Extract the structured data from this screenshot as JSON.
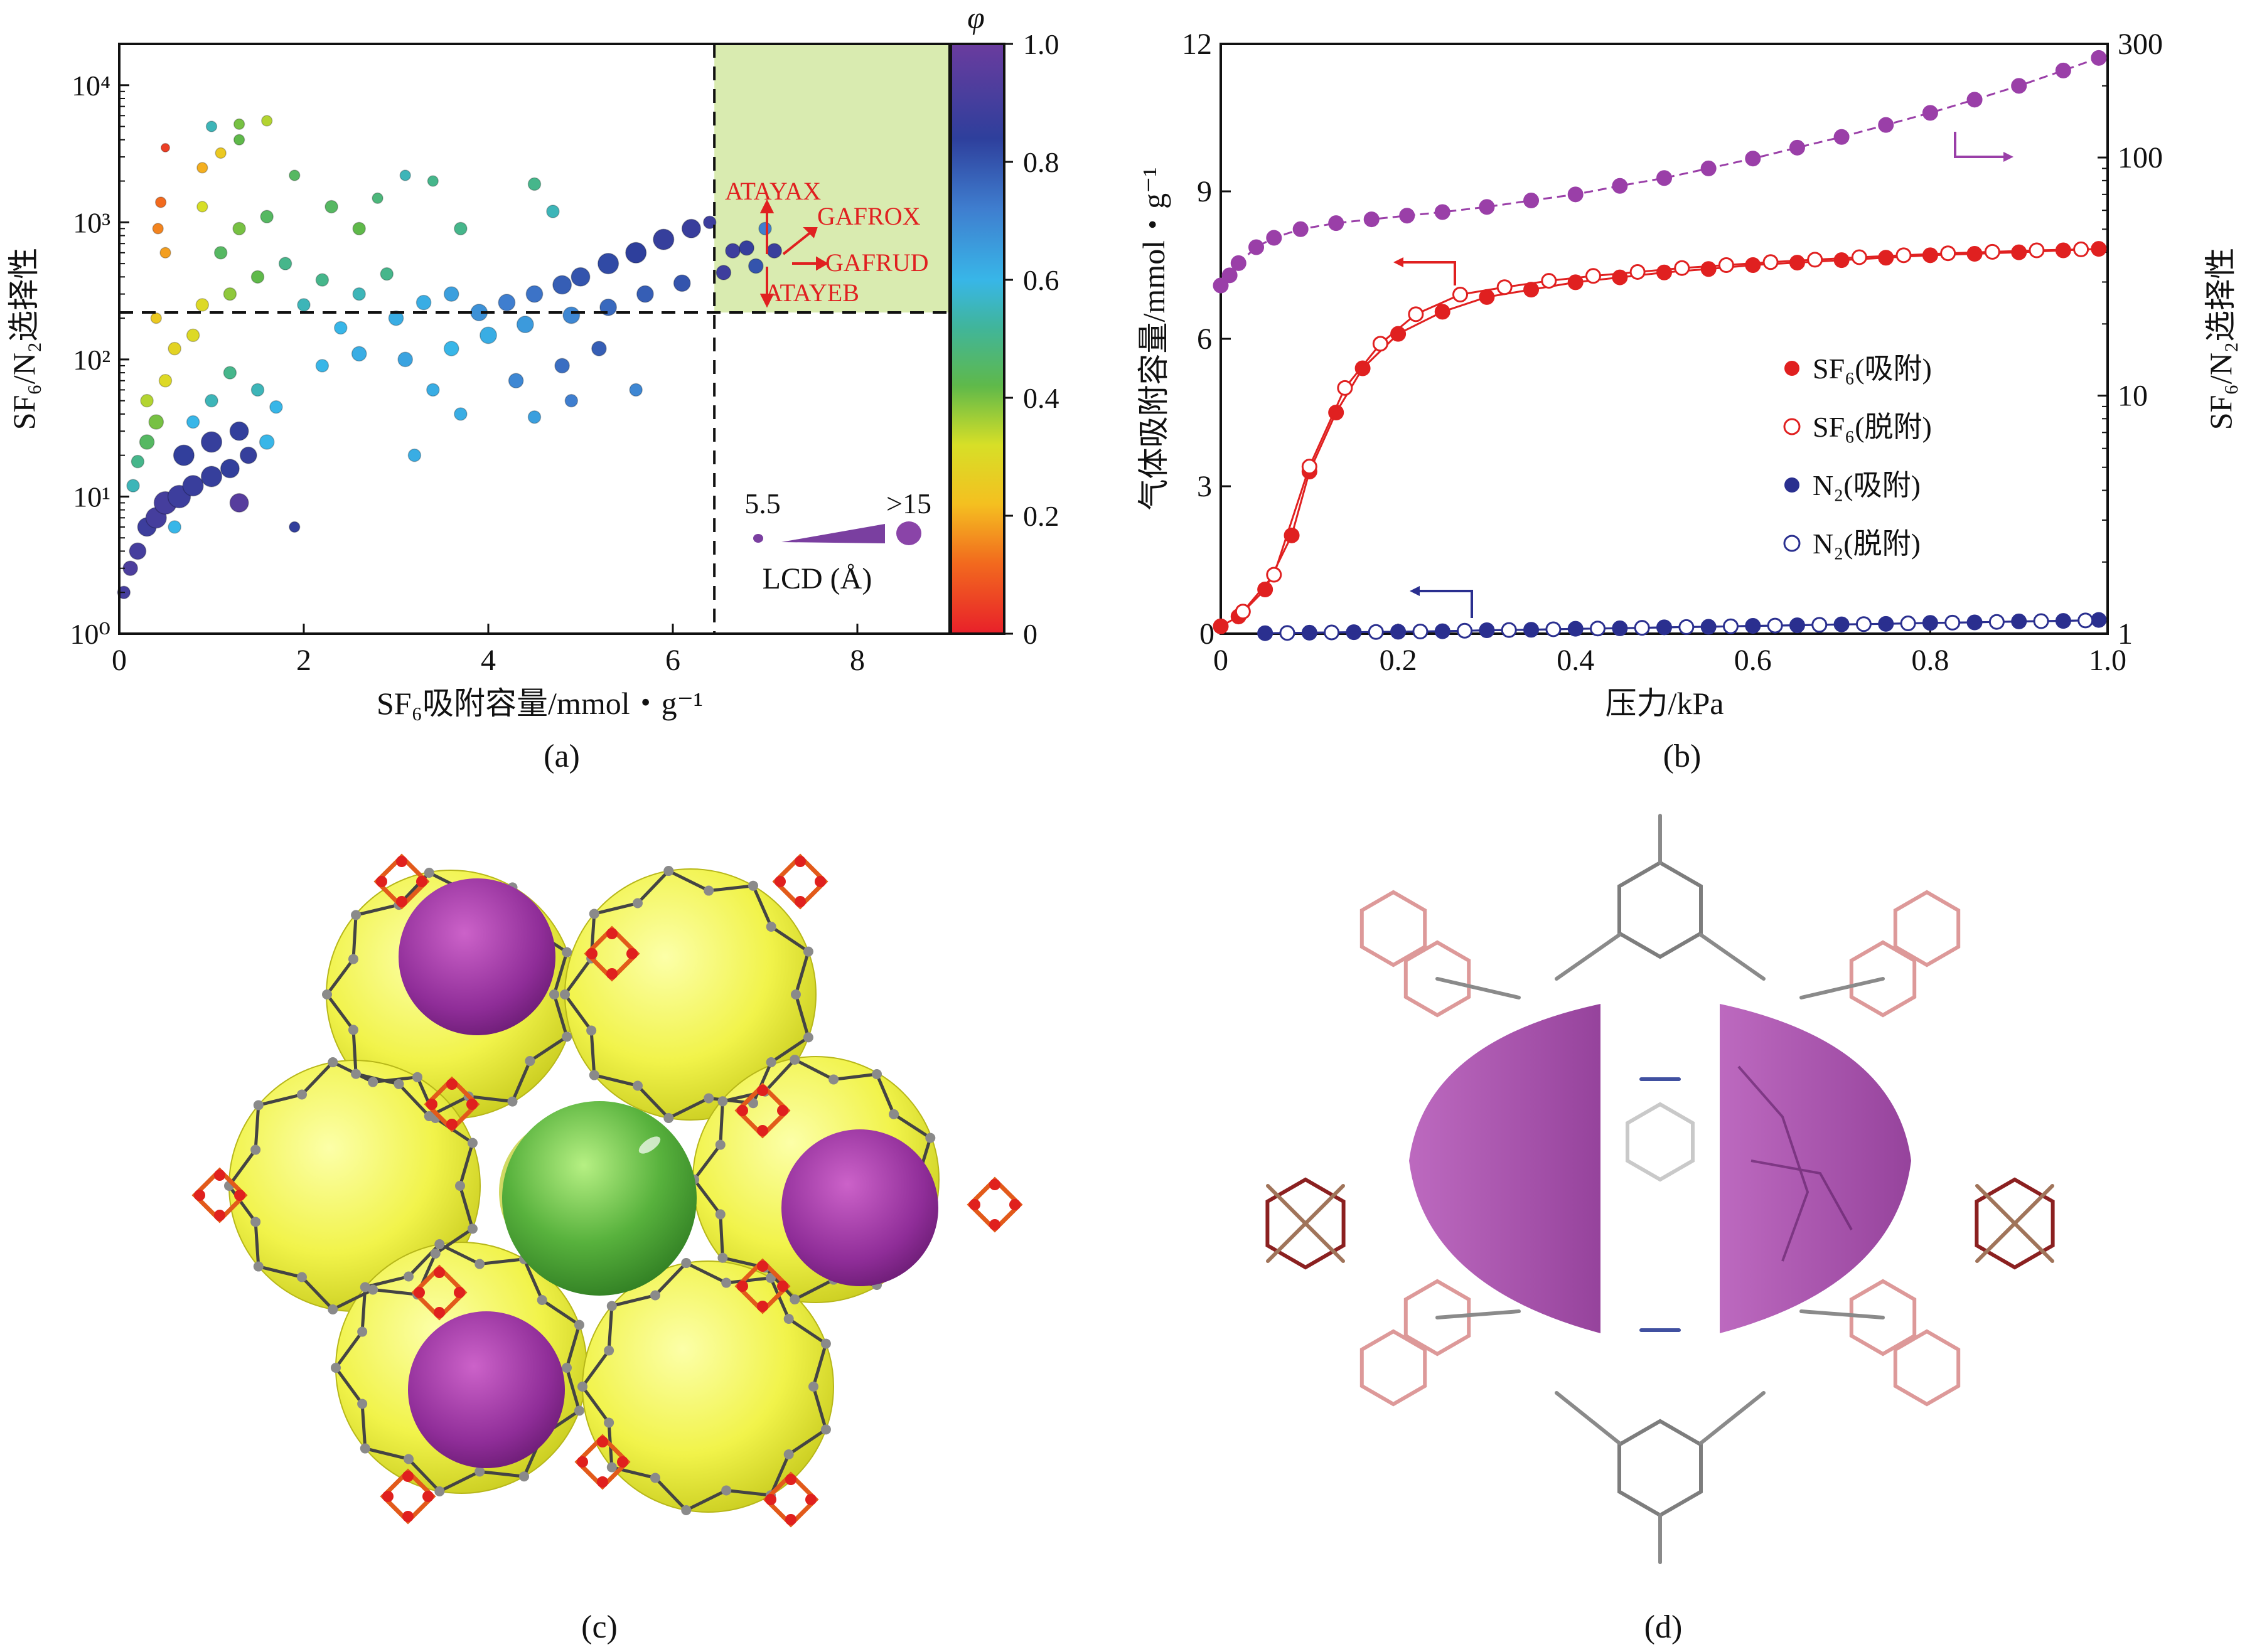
{
  "chart_data": [
    {
      "panel": "(a)",
      "type": "scatter",
      "xlabel": "SF₆吸附容量/mmol・g⁻¹",
      "ylabel": "SF₆/N₂选择性",
      "xlim": [
        0,
        9
      ],
      "ylim": [
        1,
        20000
      ],
      "yscale": "log",
      "x_ticks": [
        "0",
        "2",
        "4",
        "6",
        "8"
      ],
      "y_ticks": [
        "10⁰",
        "10¹",
        "10²",
        "10³",
        "10⁴"
      ],
      "colorbar": {
        "label": "φ",
        "ticks": [
          "0",
          "0.2",
          "0.4",
          "0.6",
          "0.8",
          "1.0"
        ],
        "range": [
          0,
          1
        ]
      },
      "thresholds": {
        "x": 6.45,
        "y": 220
      },
      "highlight_region": {
        "x": [
          6.45,
          9
        ],
        "y": [
          220,
          20000
        ],
        "color": "#d9ebb0"
      },
      "size_legend": {
        "min_label": "5.5",
        "max_label": ">15",
        "title": "LCD (Å)"
      },
      "annotations": [
        "ATAYAX",
        "GAFROX",
        "GAFRUD",
        "ATAYEB"
      ],
      "points": [
        {
          "x": 0.05,
          "y": 2,
          "phi": 0.9,
          "lcd": 8
        },
        {
          "x": 0.12,
          "y": 3,
          "phi": 0.92,
          "lcd": 9
        },
        {
          "x": 0.2,
          "y": 4,
          "phi": 0.9,
          "lcd": 10
        },
        {
          "x": 0.3,
          "y": 6,
          "phi": 0.88,
          "lcd": 11
        },
        {
          "x": 0.4,
          "y": 7,
          "phi": 0.9,
          "lcd": 12
        },
        {
          "x": 0.5,
          "y": 9,
          "phi": 0.9,
          "lcd": 13
        },
        {
          "x": 0.65,
          "y": 10,
          "phi": 0.88,
          "lcd": 13
        },
        {
          "x": 0.8,
          "y": 12,
          "phi": 0.87,
          "lcd": 12
        },
        {
          "x": 1.0,
          "y": 14,
          "phi": 0.86,
          "lcd": 12
        },
        {
          "x": 1.2,
          "y": 16,
          "phi": 0.85,
          "lcd": 11
        },
        {
          "x": 1.4,
          "y": 20,
          "phi": 0.86,
          "lcd": 10
        },
        {
          "x": 1.3,
          "y": 9,
          "phi": 0.95,
          "lcd": 11
        },
        {
          "x": 1.9,
          "y": 6,
          "phi": 0.85,
          "lcd": 7
        },
        {
          "x": 0.6,
          "y": 6,
          "phi": 0.6,
          "lcd": 8
        },
        {
          "x": 0.15,
          "y": 12,
          "phi": 0.55,
          "lcd": 8
        },
        {
          "x": 0.2,
          "y": 18,
          "phi": 0.5,
          "lcd": 8
        },
        {
          "x": 0.3,
          "y": 25,
          "phi": 0.45,
          "lcd": 9
        },
        {
          "x": 0.4,
          "y": 35,
          "phi": 0.4,
          "lcd": 9
        },
        {
          "x": 0.3,
          "y": 50,
          "phi": 0.35,
          "lcd": 8
        },
        {
          "x": 0.5,
          "y": 70,
          "phi": 0.3,
          "lcd": 8
        },
        {
          "x": 0.6,
          "y": 120,
          "phi": 0.28,
          "lcd": 8
        },
        {
          "x": 0.8,
          "y": 150,
          "phi": 0.3,
          "lcd": 8
        },
        {
          "x": 0.4,
          "y": 200,
          "phi": 0.25,
          "lcd": 7
        },
        {
          "x": 0.9,
          "y": 250,
          "phi": 0.3,
          "lcd": 8
        },
        {
          "x": 1.2,
          "y": 300,
          "phi": 0.38,
          "lcd": 8
        },
        {
          "x": 1.5,
          "y": 400,
          "phi": 0.42,
          "lcd": 8
        },
        {
          "x": 1.1,
          "y": 600,
          "phi": 0.45,
          "lcd": 8
        },
        {
          "x": 1.3,
          "y": 900,
          "phi": 0.4,
          "lcd": 8
        },
        {
          "x": 1.6,
          "y": 1100,
          "phi": 0.45,
          "lcd": 8
        },
        {
          "x": 0.9,
          "y": 1300,
          "phi": 0.32,
          "lcd": 7
        },
        {
          "x": 0.45,
          "y": 1400,
          "phi": 0.12,
          "lcd": 7
        },
        {
          "x": 0.42,
          "y": 900,
          "phi": 0.15,
          "lcd": 7
        },
        {
          "x": 0.5,
          "y": 600,
          "phi": 0.18,
          "lcd": 7
        },
        {
          "x": 0.5,
          "y": 3500,
          "phi": 0.05,
          "lcd": 6
        },
        {
          "x": 0.9,
          "y": 2500,
          "phi": 0.2,
          "lcd": 7
        },
        {
          "x": 1.1,
          "y": 3200,
          "phi": 0.25,
          "lcd": 7
        },
        {
          "x": 1.0,
          "y": 5000,
          "phi": 0.55,
          "lcd": 7
        },
        {
          "x": 1.3,
          "y": 4000,
          "phi": 0.42,
          "lcd": 7
        },
        {
          "x": 1.6,
          "y": 5500,
          "phi": 0.35,
          "lcd": 7
        },
        {
          "x": 1.3,
          "y": 5200,
          "phi": 0.4,
          "lcd": 7
        },
        {
          "x": 1.9,
          "y": 2200,
          "phi": 0.45,
          "lcd": 7
        },
        {
          "x": 2.3,
          "y": 1300,
          "phi": 0.45,
          "lcd": 8
        },
        {
          "x": 2.6,
          "y": 900,
          "phi": 0.42,
          "lcd": 8
        },
        {
          "x": 2.8,
          "y": 1500,
          "phi": 0.48,
          "lcd": 7
        },
        {
          "x": 3.1,
          "y": 2200,
          "phi": 0.55,
          "lcd": 7
        },
        {
          "x": 3.4,
          "y": 2000,
          "phi": 0.5,
          "lcd": 7
        },
        {
          "x": 4.5,
          "y": 1900,
          "phi": 0.5,
          "lcd": 8
        },
        {
          "x": 4.7,
          "y": 1200,
          "phi": 0.55,
          "lcd": 8
        },
        {
          "x": 3.7,
          "y": 900,
          "phi": 0.5,
          "lcd": 8
        },
        {
          "x": 1.8,
          "y": 500,
          "phi": 0.5,
          "lcd": 8
        },
        {
          "x": 2.0,
          "y": 250,
          "phi": 0.55,
          "lcd": 8
        },
        {
          "x": 2.2,
          "y": 380,
          "phi": 0.5,
          "lcd": 8
        },
        {
          "x": 2.4,
          "y": 170,
          "phi": 0.6,
          "lcd": 8
        },
        {
          "x": 2.6,
          "y": 300,
          "phi": 0.55,
          "lcd": 8
        },
        {
          "x": 2.9,
          "y": 420,
          "phi": 0.5,
          "lcd": 8
        },
        {
          "x": 3.0,
          "y": 200,
          "phi": 0.62,
          "lcd": 9
        },
        {
          "x": 3.3,
          "y": 260,
          "phi": 0.62,
          "lcd": 9
        },
        {
          "x": 3.6,
          "y": 300,
          "phi": 0.65,
          "lcd": 9
        },
        {
          "x": 3.9,
          "y": 220,
          "phi": 0.68,
          "lcd": 10
        },
        {
          "x": 4.2,
          "y": 260,
          "phi": 0.72,
          "lcd": 10
        },
        {
          "x": 4.5,
          "y": 300,
          "phi": 0.74,
          "lcd": 10
        },
        {
          "x": 4.8,
          "y": 350,
          "phi": 0.78,
          "lcd": 11
        },
        {
          "x": 5.0,
          "y": 400,
          "phi": 0.8,
          "lcd": 11
        },
        {
          "x": 5.3,
          "y": 500,
          "phi": 0.82,
          "lcd": 12
        },
        {
          "x": 5.6,
          "y": 600,
          "phi": 0.84,
          "lcd": 12
        },
        {
          "x": 5.9,
          "y": 750,
          "phi": 0.86,
          "lcd": 12
        },
        {
          "x": 6.2,
          "y": 900,
          "phi": 0.87,
          "lcd": 11
        },
        {
          "x": 6.4,
          "y": 1000,
          "phi": 0.88,
          "lcd": 8
        },
        {
          "x": 3.6,
          "y": 120,
          "phi": 0.6,
          "lcd": 9
        },
        {
          "x": 4.0,
          "y": 150,
          "phi": 0.62,
          "lcd": 10
        },
        {
          "x": 4.4,
          "y": 180,
          "phi": 0.66,
          "lcd": 10
        },
        {
          "x": 4.9,
          "y": 210,
          "phi": 0.7,
          "lcd": 10
        },
        {
          "x": 5.3,
          "y": 240,
          "phi": 0.76,
          "lcd": 10
        },
        {
          "x": 5.7,
          "y": 300,
          "phi": 0.78,
          "lcd": 10
        },
        {
          "x": 6.1,
          "y": 360,
          "phi": 0.8,
          "lcd": 10
        },
        {
          "x": 2.2,
          "y": 90,
          "phi": 0.6,
          "lcd": 8
        },
        {
          "x": 2.6,
          "y": 110,
          "phi": 0.62,
          "lcd": 9
        },
        {
          "x": 3.1,
          "y": 100,
          "phi": 0.64,
          "lcd": 9
        },
        {
          "x": 3.4,
          "y": 60,
          "phi": 0.62,
          "lcd": 8
        },
        {
          "x": 4.3,
          "y": 70,
          "phi": 0.7,
          "lcd": 9
        },
        {
          "x": 4.8,
          "y": 90,
          "phi": 0.75,
          "lcd": 9
        },
        {
          "x": 5.2,
          "y": 120,
          "phi": 0.78,
          "lcd": 9
        },
        {
          "x": 5.6,
          "y": 60,
          "phi": 0.7,
          "lcd": 8
        },
        {
          "x": 4.9,
          "y": 50,
          "phi": 0.72,
          "lcd": 8
        },
        {
          "x": 4.5,
          "y": 38,
          "phi": 0.65,
          "lcd": 8
        },
        {
          "x": 3.7,
          "y": 40,
          "phi": 0.62,
          "lcd": 8
        },
        {
          "x": 3.2,
          "y": 20,
          "phi": 0.62,
          "lcd": 8
        },
        {
          "x": 1.7,
          "y": 45,
          "phi": 0.6,
          "lcd": 8
        },
        {
          "x": 1.5,
          "y": 60,
          "phi": 0.55,
          "lcd": 8
        },
        {
          "x": 1.2,
          "y": 80,
          "phi": 0.5,
          "lcd": 8
        },
        {
          "x": 1.0,
          "y": 50,
          "phi": 0.55,
          "lcd": 8
        },
        {
          "x": 0.8,
          "y": 35,
          "phi": 0.6,
          "lcd": 8
        },
        {
          "x": 1.0,
          "y": 25,
          "phi": 0.86,
          "lcd": 12
        },
        {
          "x": 1.3,
          "y": 30,
          "phi": 0.85,
          "lcd": 11
        },
        {
          "x": 1.6,
          "y": 25,
          "phi": 0.6,
          "lcd": 9
        },
        {
          "x": 0.7,
          "y": 20,
          "phi": 0.85,
          "lcd": 12
        },
        {
          "x": 6.55,
          "y": 430,
          "phi": 0.88,
          "lcd": 9
        },
        {
          "x": 6.65,
          "y": 620,
          "phi": 0.88,
          "lcd": 9
        },
        {
          "x": 6.8,
          "y": 650,
          "phi": 0.86,
          "lcd": 9
        },
        {
          "x": 6.9,
          "y": 480,
          "phi": 0.8,
          "lcd": 9
        },
        {
          "x": 7.0,
          "y": 900,
          "phi": 0.72,
          "lcd": 8
        },
        {
          "x": 7.1,
          "y": 620,
          "phi": 0.87,
          "lcd": 9
        }
      ]
    },
    {
      "panel": "(b)",
      "type": "line",
      "xlabel": "压力/kPa",
      "ylabel_left": "气体吸附容量/mmol・g⁻¹",
      "ylabel_right": "SF₆/N₂选择性",
      "xlim": [
        0,
        1.0
      ],
      "ylim_left": [
        0,
        12
      ],
      "ylim_right": [
        1,
        300
      ],
      "right_scale": "log",
      "x_ticks": [
        "0",
        "0.2",
        "0.4",
        "0.6",
        "0.8",
        "1.0"
      ],
      "y_ticks_left": [
        "3",
        "6",
        "9",
        "12"
      ],
      "y_ticks_right": [
        "1",
        "10",
        "100",
        "300"
      ],
      "legend_position": "center-right",
      "legend": [
        "SF₆(吸附)",
        "SF₆(脱附)",
        "N₂(吸附)",
        "N₂(脱附)"
      ],
      "series": [
        {
          "name": "SF₆(吸附)",
          "axis": "left",
          "color": "#e02020",
          "x": [
            0,
            0.02,
            0.05,
            0.08,
            0.1,
            0.13,
            0.16,
            0.2,
            0.25,
            0.3,
            0.35,
            0.4,
            0.45,
            0.5,
            0.55,
            0.6,
            0.65,
            0.7,
            0.75,
            0.8,
            0.85,
            0.9,
            0.95,
            0.99
          ],
          "y": [
            0.15,
            0.35,
            0.9,
            2.0,
            3.3,
            4.5,
            5.4,
            6.1,
            6.55,
            6.85,
            7.0,
            7.15,
            7.25,
            7.35,
            7.42,
            7.5,
            7.55,
            7.6,
            7.65,
            7.7,
            7.73,
            7.76,
            7.8,
            7.83
          ]
        },
        {
          "name": "SF₆(脱附)",
          "axis": "left",
          "color": "#e02020",
          "x": [
            0.025,
            0.06,
            0.1,
            0.14,
            0.18,
            0.22,
            0.27,
            0.32,
            0.37,
            0.42,
            0.47,
            0.52,
            0.57,
            0.62,
            0.67,
            0.72,
            0.77,
            0.82,
            0.87,
            0.92,
            0.97
          ],
          "y": [
            0.45,
            1.2,
            3.4,
            5.0,
            5.9,
            6.5,
            6.9,
            7.05,
            7.18,
            7.28,
            7.36,
            7.44,
            7.5,
            7.56,
            7.61,
            7.66,
            7.7,
            7.74,
            7.77,
            7.8,
            7.82
          ]
        },
        {
          "name": "N₂(吸附)",
          "axis": "left",
          "color": "#2a2f8f",
          "x": [
            0.05,
            0.1,
            0.15,
            0.2,
            0.25,
            0.3,
            0.35,
            0.4,
            0.45,
            0.5,
            0.55,
            0.6,
            0.65,
            0.7,
            0.75,
            0.8,
            0.85,
            0.9,
            0.95,
            0.99
          ],
          "y": [
            0.01,
            0.02,
            0.03,
            0.04,
            0.05,
            0.07,
            0.08,
            0.1,
            0.11,
            0.13,
            0.14,
            0.16,
            0.17,
            0.19,
            0.2,
            0.22,
            0.23,
            0.25,
            0.26,
            0.28
          ]
        },
        {
          "name": "N₂(脱附)",
          "axis": "left",
          "color": "#2a2f8f",
          "x": [
            0.075,
            0.125,
            0.175,
            0.225,
            0.275,
            0.325,
            0.375,
            0.425,
            0.475,
            0.525,
            0.575,
            0.625,
            0.675,
            0.725,
            0.775,
            0.825,
            0.875,
            0.925,
            0.975
          ],
          "y": [
            0.015,
            0.025,
            0.035,
            0.045,
            0.06,
            0.075,
            0.09,
            0.105,
            0.12,
            0.135,
            0.15,
            0.165,
            0.18,
            0.195,
            0.21,
            0.225,
            0.24,
            0.255,
            0.27
          ]
        },
        {
          "name": "SF₆/N₂选择性",
          "axis": "right",
          "color": "#9a3fa8",
          "x": [
            0,
            0.01,
            0.02,
            0.04,
            0.06,
            0.09,
            0.13,
            0.17,
            0.21,
            0.25,
            0.3,
            0.35,
            0.4,
            0.45,
            0.5,
            0.55,
            0.6,
            0.65,
            0.7,
            0.75,
            0.8,
            0.85,
            0.9,
            0.95,
            0.99
          ],
          "y": [
            29,
            32,
            36,
            42,
            46,
            50,
            53,
            55,
            57,
            59,
            62,
            66,
            70,
            76,
            82,
            90,
            99,
            110,
            122,
            137,
            154,
            175,
            200,
            232,
            262
          ]
        }
      ]
    }
  ],
  "panels": {
    "a": {
      "label": "(a)"
    },
    "b": {
      "label": "(b)"
    },
    "c": {
      "label": "(c)"
    },
    "d": {
      "label": "(d)"
    }
  }
}
